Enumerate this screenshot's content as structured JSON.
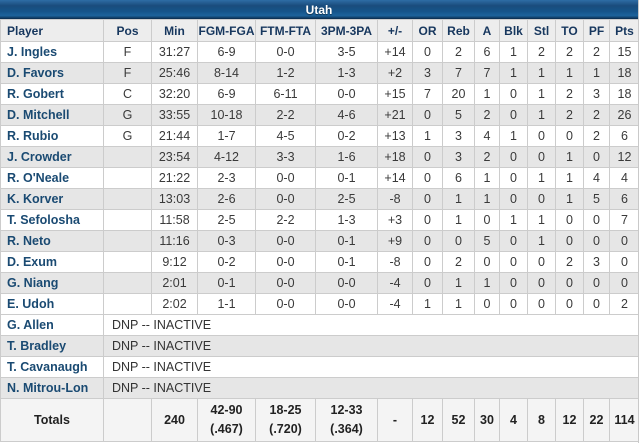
{
  "title": "Utah",
  "columns": [
    "Player",
    "Pos",
    "Min",
    "FGM-FGA",
    "FTM-FTA",
    "3PM-3PA",
    "+/-",
    "OR",
    "Reb",
    "A",
    "Blk",
    "Stl",
    "TO",
    "PF",
    "Pts"
  ],
  "players": [
    {
      "name": "J. Ingles",
      "pos": "F",
      "min": "31:27",
      "fg": "6-9",
      "ft": "0-0",
      "tp": "3-5",
      "pm": "+14",
      "or": "0",
      "reb": "2",
      "a": "6",
      "blk": "1",
      "stl": "2",
      "to": "2",
      "pf": "2",
      "pts": "15"
    },
    {
      "name": "D. Favors",
      "pos": "F",
      "min": "25:46",
      "fg": "8-14",
      "ft": "1-2",
      "tp": "1-3",
      "pm": "+2",
      "or": "3",
      "reb": "7",
      "a": "7",
      "blk": "1",
      "stl": "1",
      "to": "1",
      "pf": "1",
      "pts": "18"
    },
    {
      "name": "R. Gobert",
      "pos": "C",
      "min": "32:20",
      "fg": "6-9",
      "ft": "6-11",
      "tp": "0-0",
      "pm": "+15",
      "or": "7",
      "reb": "20",
      "a": "1",
      "blk": "0",
      "stl": "1",
      "to": "2",
      "pf": "3",
      "pts": "18"
    },
    {
      "name": "D. Mitchell",
      "pos": "G",
      "min": "33:55",
      "fg": "10-18",
      "ft": "2-2",
      "tp": "4-6",
      "pm": "+21",
      "or": "0",
      "reb": "5",
      "a": "2",
      "blk": "0",
      "stl": "1",
      "to": "2",
      "pf": "2",
      "pts": "26"
    },
    {
      "name": "R. Rubio",
      "pos": "G",
      "min": "21:44",
      "fg": "1-7",
      "ft": "4-5",
      "tp": "0-2",
      "pm": "+13",
      "or": "1",
      "reb": "3",
      "a": "4",
      "blk": "1",
      "stl": "0",
      "to": "0",
      "pf": "2",
      "pts": "6"
    },
    {
      "name": "J. Crowder",
      "pos": "",
      "min": "23:54",
      "fg": "4-12",
      "ft": "3-3",
      "tp": "1-6",
      "pm": "+18",
      "or": "0",
      "reb": "3",
      "a": "2",
      "blk": "0",
      "stl": "0",
      "to": "1",
      "pf": "0",
      "pts": "12"
    },
    {
      "name": "R. O'Neale",
      "pos": "",
      "min": "21:22",
      "fg": "2-3",
      "ft": "0-0",
      "tp": "0-1",
      "pm": "+14",
      "or": "0",
      "reb": "6",
      "a": "1",
      "blk": "0",
      "stl": "1",
      "to": "1",
      "pf": "4",
      "pts": "4"
    },
    {
      "name": "K. Korver",
      "pos": "",
      "min": "13:03",
      "fg": "2-6",
      "ft": "0-0",
      "tp": "2-5",
      "pm": "-8",
      "or": "0",
      "reb": "1",
      "a": "1",
      "blk": "0",
      "stl": "0",
      "to": "1",
      "pf": "5",
      "pts": "6"
    },
    {
      "name": "T. Sefolosha",
      "pos": "",
      "min": "11:58",
      "fg": "2-5",
      "ft": "2-2",
      "tp": "1-3",
      "pm": "+3",
      "or": "0",
      "reb": "1",
      "a": "0",
      "blk": "1",
      "stl": "1",
      "to": "0",
      "pf": "0",
      "pts": "7"
    },
    {
      "name": "R. Neto",
      "pos": "",
      "min": "11:16",
      "fg": "0-3",
      "ft": "0-0",
      "tp": "0-1",
      "pm": "+9",
      "or": "0",
      "reb": "0",
      "a": "5",
      "blk": "0",
      "stl": "1",
      "to": "0",
      "pf": "0",
      "pts": "0"
    },
    {
      "name": "D. Exum",
      "pos": "",
      "min": "9:12",
      "fg": "0-2",
      "ft": "0-0",
      "tp": "0-1",
      "pm": "-8",
      "or": "0",
      "reb": "2",
      "a": "0",
      "blk": "0",
      "stl": "0",
      "to": "2",
      "pf": "3",
      "pts": "0"
    },
    {
      "name": "G. Niang",
      "pos": "",
      "min": "2:01",
      "fg": "0-1",
      "ft": "0-0",
      "tp": "0-0",
      "pm": "-4",
      "or": "0",
      "reb": "1",
      "a": "1",
      "blk": "0",
      "stl": "0",
      "to": "0",
      "pf": "0",
      "pts": "0"
    },
    {
      "name": "E. Udoh",
      "pos": "",
      "min": "2:02",
      "fg": "1-1",
      "ft": "0-0",
      "tp": "0-0",
      "pm": "-4",
      "or": "1",
      "reb": "1",
      "a": "0",
      "blk": "0",
      "stl": "0",
      "to": "0",
      "pf": "0",
      "pts": "2"
    }
  ],
  "dnp_players": [
    {
      "name": "G. Allen",
      "status": "DNP -- INACTIVE"
    },
    {
      "name": "T. Bradley",
      "status": "DNP -- INACTIVE"
    },
    {
      "name": "T. Cavanaugh",
      "status": "DNP -- INACTIVE"
    },
    {
      "name": "N. Mitrou-Lon",
      "status": "DNP -- INACTIVE"
    }
  ],
  "totals": {
    "label": "Totals",
    "pos": "",
    "min": "240",
    "fg": "42-90",
    "fg_pct": "(.467)",
    "ft": "18-25",
    "ft_pct": "(.720)",
    "tp": "12-33",
    "tp_pct": "(.364)",
    "pm": "-",
    "or": "12",
    "reb": "52",
    "a": "30",
    "blk": "4",
    "stl": "8",
    "to": "12",
    "pf": "22",
    "pts": "114"
  },
  "colors": {
    "title_bar_blue": "#15548a",
    "header_text": "#17375e",
    "link_navy": "#1a4a72",
    "row_alt_gray": "#e6e6e6",
    "totals_bg": "#f4f4f4"
  }
}
